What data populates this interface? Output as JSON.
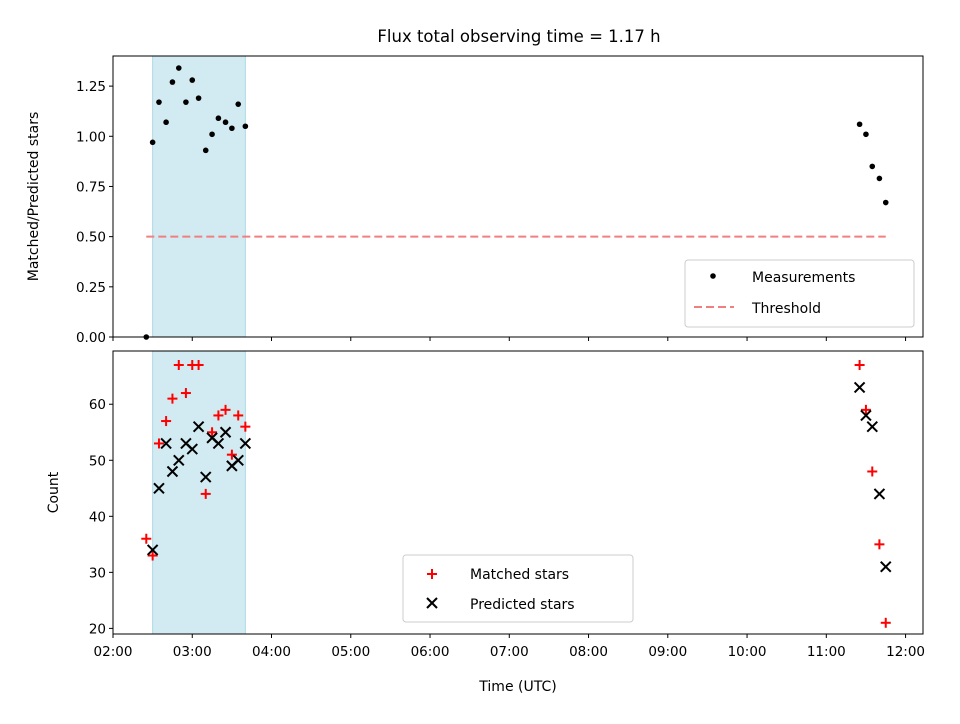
{
  "title": "Flux total observing time = 1.17 h",
  "colors": {
    "measurement": "#000000",
    "threshold": "#f08080",
    "shade": "#add8e6",
    "matched": "#ff0000",
    "predicted": "#000000"
  },
  "chart_data": [
    {
      "type": "scatter",
      "panel": "top",
      "ylabel": "Matched/Predicted stars",
      "xlabel": "",
      "x_unit": "hours (UTC)",
      "xlim": [
        2.0,
        12.22
      ],
      "ylim": [
        0.0,
        1.4
      ],
      "yticks": [
        0.0,
        0.25,
        0.5,
        0.75,
        1.0,
        1.25
      ],
      "ytick_labels": [
        "0.00",
        "0.25",
        "0.50",
        "0.75",
        "1.00",
        "1.25"
      ],
      "shaded_region": [
        2.5,
        3.67
      ],
      "series": [
        {
          "name": "Measurements",
          "marker": "dot",
          "x": [
            2.42,
            2.5,
            2.58,
            2.67,
            2.75,
            2.83,
            2.92,
            3.0,
            3.08,
            3.17,
            3.25,
            3.33,
            3.42,
            3.5,
            3.58,
            3.67,
            11.42,
            11.5,
            11.58,
            11.67,
            11.75
          ],
          "y": [
            0.0,
            0.97,
            1.17,
            1.07,
            1.27,
            1.34,
            1.17,
            1.28,
            1.19,
            0.93,
            1.01,
            1.09,
            1.07,
            1.04,
            1.16,
            1.05,
            1.06,
            1.01,
            0.85,
            0.79,
            0.67
          ]
        },
        {
          "name": "Threshold",
          "style": "dashed",
          "x": [
            2.42,
            11.75
          ],
          "y": [
            0.5,
            0.5
          ]
        }
      ],
      "legend_position": "lower-right"
    },
    {
      "type": "scatter",
      "panel": "bottom",
      "ylabel": "Count",
      "xlabel": "Time (UTC)",
      "x_unit": "hours (UTC)",
      "xlim": [
        2.0,
        12.22
      ],
      "ylim": [
        19,
        69.5
      ],
      "yticks": [
        20,
        30,
        40,
        50,
        60
      ],
      "ytick_labels": [
        "20",
        "30",
        "40",
        "50",
        "60"
      ],
      "xticks": [
        2,
        3,
        4,
        5,
        6,
        7,
        8,
        9,
        10,
        11,
        12
      ],
      "xtick_labels": [
        "02:00",
        "03:00",
        "04:00",
        "05:00",
        "06:00",
        "07:00",
        "08:00",
        "09:00",
        "10:00",
        "11:00",
        "12:00"
      ],
      "shaded_region": [
        2.5,
        3.67
      ],
      "series": [
        {
          "name": "Matched stars",
          "marker": "plus",
          "x": [
            2.42,
            2.5,
            2.58,
            2.67,
            2.75,
            2.83,
            2.92,
            3.0,
            3.08,
            3.17,
            3.25,
            3.33,
            3.42,
            3.5,
            3.58,
            3.67,
            11.42,
            11.5,
            11.58,
            11.67,
            11.75
          ],
          "y": [
            36,
            33,
            53,
            57,
            61,
            67,
            62,
            67,
            67,
            44,
            55,
            58,
            59,
            51,
            58,
            56,
            67,
            59,
            48,
            35,
            21
          ]
        },
        {
          "name": "Predicted stars",
          "marker": "x",
          "x": [
            2.5,
            2.58,
            2.67,
            2.75,
            2.83,
            2.92,
            3.0,
            3.08,
            3.17,
            3.25,
            3.33,
            3.42,
            3.5,
            3.58,
            3.67,
            11.42,
            11.5,
            11.58,
            11.67,
            11.75
          ],
          "y": [
            34,
            45,
            53,
            48,
            50,
            53,
            52,
            56,
            47,
            54,
            53,
            55,
            49,
            50,
            53,
            63,
            58,
            56,
            44,
            31
          ]
        }
      ],
      "legend_position": "lower-center"
    }
  ]
}
